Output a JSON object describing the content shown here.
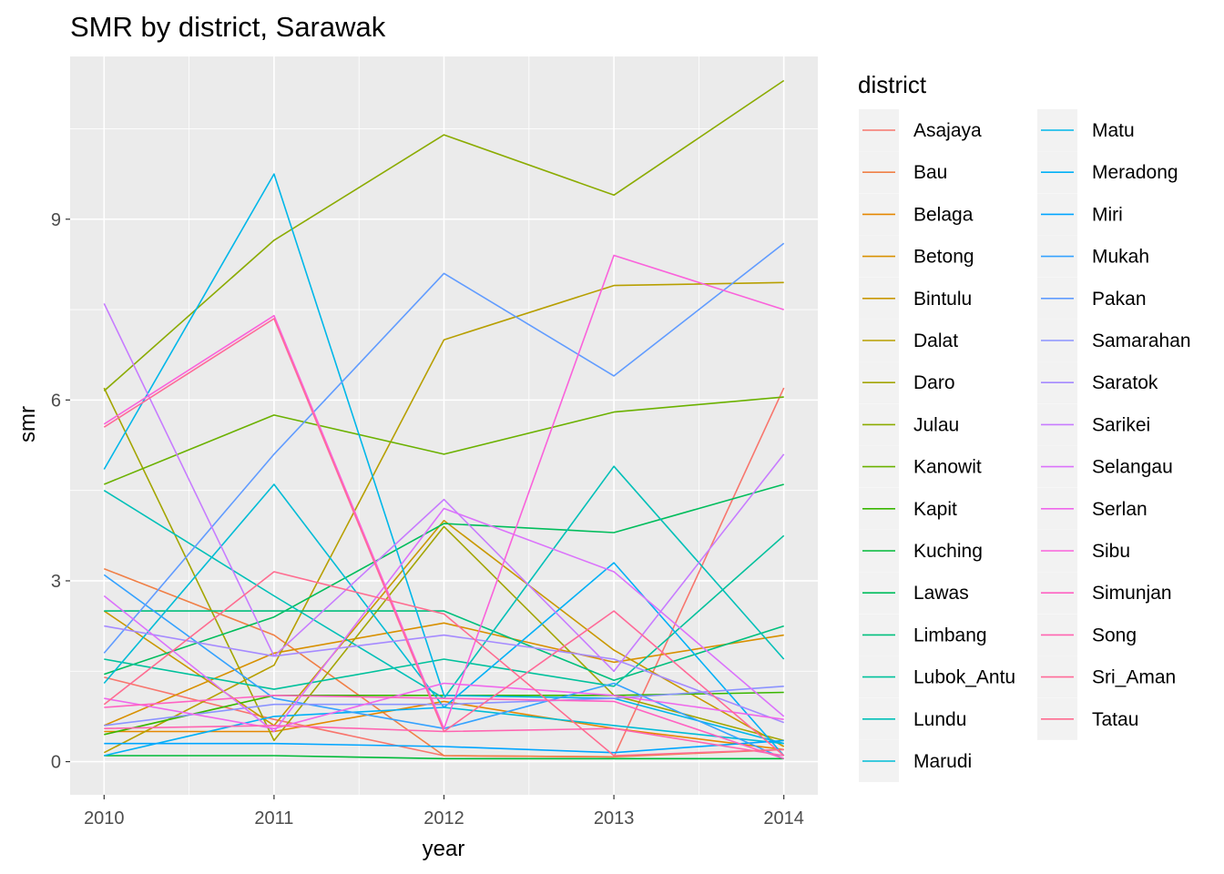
{
  "chart_data": {
    "type": "line",
    "title": "SMR by district, Sarawak",
    "xlabel": "year",
    "ylabel": "smr",
    "x": [
      2010,
      2011,
      2012,
      2013,
      2014
    ],
    "x_ticks": [
      "2010",
      "2011",
      "2012",
      "2013",
      "2014"
    ],
    "y_ticks": [
      "0",
      "3",
      "6",
      "9"
    ],
    "ylim": [
      -0.55,
      11.7
    ],
    "grid": true,
    "legend_title": "district",
    "legend_position": "right",
    "series": [
      {
        "name": "Asajaya",
        "color": "#F8766D",
        "values": [
          1.4,
          0.7,
          0.1,
          0.08,
          6.2
        ]
      },
      {
        "name": "Bau",
        "color": "#F07F46",
        "values": [
          3.2,
          2.1,
          0.1,
          0.08,
          0.2
        ]
      },
      {
        "name": "Belaga",
        "color": "#E58700",
        "values": [
          0.5,
          0.5,
          1.0,
          0.55,
          0.2
        ]
      },
      {
        "name": "Betong",
        "color": "#D89000",
        "values": [
          0.6,
          1.8,
          2.3,
          1.65,
          2.1
        ]
      },
      {
        "name": "Bintulu",
        "color": "#C99800",
        "values": [
          2.5,
          0.6,
          4.0,
          1.85,
          0.25
        ]
      },
      {
        "name": "Dalat",
        "color": "#B79F00",
        "values": [
          0.15,
          1.6,
          7.0,
          7.9,
          7.95
        ]
      },
      {
        "name": "Daro",
        "color": "#A3A500",
        "values": [
          6.2,
          0.35,
          3.9,
          1.1,
          0.35
        ]
      },
      {
        "name": "Julau",
        "color": "#8BAB00",
        "values": [
          6.15,
          8.65,
          10.4,
          9.4,
          11.3
        ]
      },
      {
        "name": "Kanowit",
        "color": "#6BB100",
        "values": [
          4.6,
          5.75,
          5.1,
          5.8,
          6.05
        ]
      },
      {
        "name": "Kapit",
        "color": "#39B600",
        "values": [
          0.45,
          1.1,
          1.1,
          1.1,
          1.15
        ]
      },
      {
        "name": "Kuching",
        "color": "#00BA38",
        "values": [
          0.1,
          0.1,
          0.05,
          0.05,
          0.05
        ]
      },
      {
        "name": "Lawas",
        "color": "#00BD5C",
        "values": [
          1.45,
          2.4,
          3.95,
          3.8,
          4.6
        ]
      },
      {
        "name": "Limbang",
        "color": "#00BF7D",
        "values": [
          2.5,
          2.5,
          2.5,
          1.35,
          2.25
        ]
      },
      {
        "name": "Lubok_Antu",
        "color": "#00C19C",
        "values": [
          1.7,
          1.2,
          1.7,
          1.25,
          3.75
        ]
      },
      {
        "name": "Lundu",
        "color": "#00C0B8",
        "values": [
          4.5,
          2.75,
          1.05,
          4.9,
          1.7
        ]
      },
      {
        "name": "Marudi",
        "color": "#00BCD6",
        "values": [
          1.3,
          4.6,
          0.9,
          0.6,
          0.3
        ]
      },
      {
        "name": "Matu",
        "color": "#00B7E9",
        "values": [
          4.85,
          9.75,
          1.1,
          1.05,
          0.3
        ]
      },
      {
        "name": "Meradong",
        "color": "#00B0F6",
        "values": [
          0.1,
          0.75,
          0.9,
          3.3,
          0.1
        ]
      },
      {
        "name": "Miri",
        "color": "#00A5FF",
        "values": [
          0.3,
          0.3,
          0.25,
          0.15,
          0.35
        ]
      },
      {
        "name": "Mukah",
        "color": "#35A2FF",
        "values": [
          3.1,
          1.05,
          0.55,
          1.3,
          0.05
        ]
      },
      {
        "name": "Pakan",
        "color": "#619CFF",
        "values": [
          1.8,
          5.1,
          8.1,
          6.4,
          8.6
        ]
      },
      {
        "name": "Samarahan",
        "color": "#8B93FF",
        "values": [
          0.6,
          0.95,
          0.95,
          1.05,
          1.25
        ]
      },
      {
        "name": "Saratok",
        "color": "#A58AFF",
        "values": [
          2.25,
          1.75,
          2.1,
          1.7,
          0.65
        ]
      },
      {
        "name": "Sarikei",
        "color": "#C77CFF",
        "values": [
          7.6,
          1.75,
          4.35,
          1.5,
          5.1
        ]
      },
      {
        "name": "Selangau",
        "color": "#DB72FB",
        "values": [
          2.75,
          0.5,
          4.2,
          3.15,
          0.75
        ]
      },
      {
        "name": "Serlan",
        "color": "#EF67EB",
        "values": [
          1.05,
          0.55,
          1.3,
          1.1,
          0.7
        ]
      },
      {
        "name": "Sibu",
        "color": "#FA62DB",
        "values": [
          5.6,
          7.4,
          0.55,
          8.4,
          7.5
        ]
      },
      {
        "name": "Simunjan",
        "color": "#FF62C2",
        "values": [
          0.9,
          1.1,
          1.05,
          1.0,
          0.05
        ]
      },
      {
        "name": "Song",
        "color": "#FF64B0",
        "values": [
          0.55,
          0.6,
          0.5,
          0.55,
          0.1
        ]
      },
      {
        "name": "Sri_Aman",
        "color": "#FF6A98",
        "values": [
          5.55,
          7.35,
          0.5,
          2.5,
          0.1
        ]
      },
      {
        "name": "Tatau",
        "color": "#FF6C90",
        "values": [
          0.95,
          3.15,
          2.45,
          0.1,
          0.2
        ]
      }
    ]
  }
}
